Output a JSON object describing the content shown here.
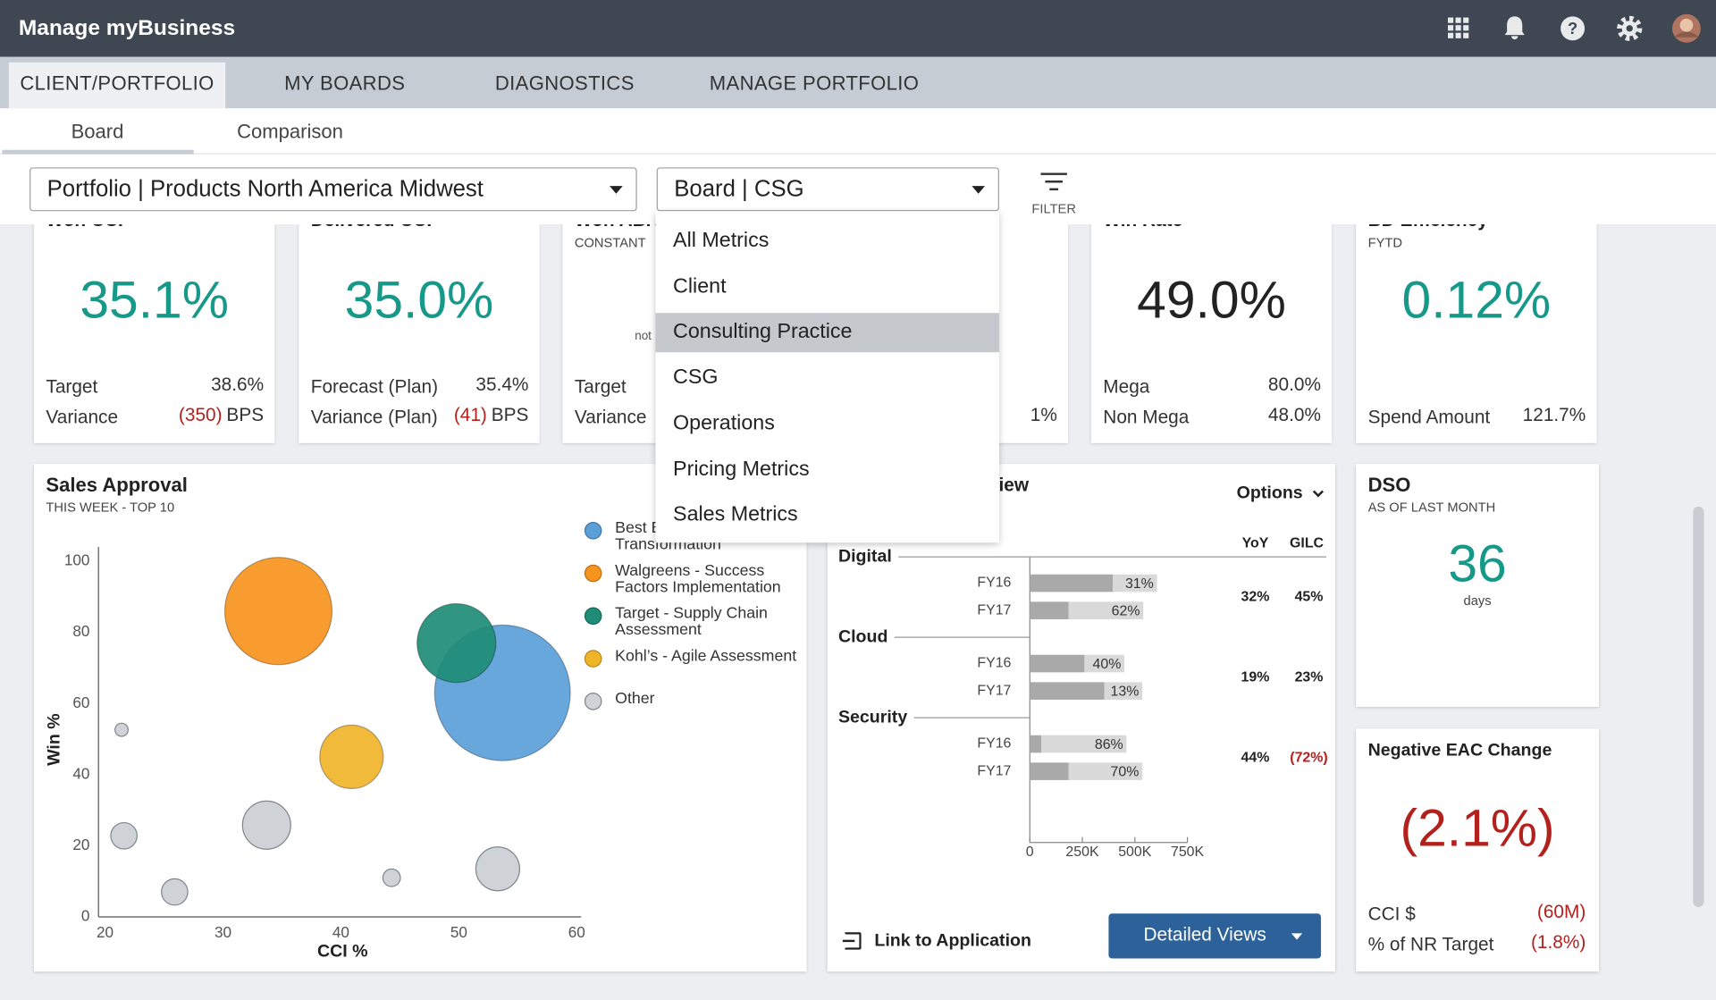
{
  "header": {
    "title": "Manage myBusiness"
  },
  "tabs": {
    "items": [
      "CLIENT/PORTFOLIO",
      "MY BOARDS",
      "DIAGNOSTICS",
      "MANAGE PORTFOLIO"
    ],
    "active": 0
  },
  "subtabs": {
    "items": [
      "Board",
      "Comparison"
    ],
    "active": 0
  },
  "selectors": {
    "portfolio": "Portfolio | Products North America Midwest",
    "board": "Board | CSG",
    "filter": "FILTER"
  },
  "dropdown": {
    "items": [
      "All Metrics",
      "Client",
      "Consulting Practice",
      "CSG",
      "Operations",
      "Pricing Metrics",
      "Sales Metrics"
    ],
    "highlighted": 2
  },
  "kpi_cards": [
    {
      "title": "Won CCI",
      "value": "35.1%",
      "value_color": "#17998a",
      "rows": [
        {
          "label": "Target",
          "value": "38.6%"
        },
        {
          "label": "Variance",
          "value": "(350)",
          "unit": "BPS",
          "negative": true
        }
      ]
    },
    {
      "title": "Delivered CCI",
      "value": "35.0%",
      "value_color": "#17998a",
      "rows": [
        {
          "label": "Forecast (Plan)",
          "value": "35.4%"
        },
        {
          "label": "Variance (Plan)",
          "value": "(41)",
          "unit": "BPS",
          "negative": true
        }
      ]
    },
    {
      "title": "Won ABR",
      "subtitle": "CONSTANT",
      "note": "not",
      "rows": [
        {
          "label": "Target"
        },
        {
          "label": "Variance"
        }
      ]
    },
    {
      "rows": [
        {},
        {
          "value": "1%"
        }
      ]
    },
    {
      "title": "Win Rate",
      "value": "49.0%",
      "value_color": "#222222",
      "rows": [
        {
          "label": "Mega",
          "value": "80.0%"
        },
        {
          "label": "Non Mega",
          "value": "48.0%"
        }
      ]
    },
    {
      "title": "BD Efficiency",
      "subtitle": "FYTD",
      "value": "0.12%",
      "value_color": "#17998a",
      "rows": [
        {},
        {
          "label": "Spend Amount",
          "value": "121.7%"
        }
      ]
    }
  ],
  "sales_approval": {
    "title": "Sales Approval",
    "subtitle": "THIS WEEK - TOP 10",
    "chart_data": {
      "type": "bubble",
      "xlabel": "CCI %",
      "ylabel": "Win %",
      "xlim": [
        20,
        60
      ],
      "xticks": [
        20,
        30,
        40,
        50,
        60
      ],
      "ylim": [
        0,
        100
      ],
      "yticks": [
        0,
        20,
        40,
        60,
        80,
        100
      ],
      "series": [
        {
          "name": "Best Buy - Digital Transformation",
          "color": "#5b9fd9",
          "x": [
            53.7
          ],
          "y": [
            63
          ],
          "size": [
            62
          ]
        },
        {
          "name": "Walgreens - Success Factors Implementation",
          "color": "#f7941d",
          "x": [
            34.7
          ],
          "y": [
            86
          ],
          "size": [
            49
          ]
        },
        {
          "name": "Target - Supply Chain Assessment",
          "color": "#1e8c76",
          "x": [
            49.8
          ],
          "y": [
            77
          ],
          "size": [
            36
          ]
        },
        {
          "name": "Kohl’s - Agile Assessment",
          "color": "#f0b429",
          "x": [
            40.9
          ],
          "y": [
            45
          ],
          "size": [
            29
          ]
        },
        {
          "name": "Other",
          "color": "#cfd3d7",
          "x": [
            21.4,
            21.6,
            25.9,
            33.7,
            44.3,
            53.3
          ],
          "y": [
            52.6,
            22.8,
            7,
            25.8,
            11,
            13.5
          ],
          "size": [
            6,
            12,
            12,
            22,
            8,
            20
          ]
        }
      ]
    }
  },
  "overview": {
    "title": "Overview",
    "options": "Options",
    "columns": [
      "YoY",
      "GILC"
    ],
    "chart_data": {
      "type": "bar",
      "orientation": "horizontal",
      "stacked": true,
      "segment_colors": [
        "#a9a9a9",
        "#d9d9d9"
      ],
      "xlim": [
        0,
        750000
      ],
      "xticks": [
        0,
        {
          "value": 250000,
          "label": "250K"
        },
        {
          "value": 500000,
          "label": "500K"
        },
        {
          "value": 750000,
          "label": "750K"
        }
      ],
      "groups": [
        {
          "name": "Digital",
          "categories": [
            "FY16",
            "FY17"
          ],
          "values": [
            [
              395000,
              210000
            ],
            [
              185000,
              355000
            ]
          ],
          "value_labels": [
            "31%",
            "62%"
          ],
          "yoy": "32%",
          "gilc": "45%"
        },
        {
          "name": "Cloud",
          "categories": [
            "FY16",
            "FY17"
          ],
          "values": [
            [
              260000,
              190000
            ],
            [
              355000,
              180000
            ]
          ],
          "value_labels": [
            "40%",
            "13%"
          ],
          "yoy": "19%",
          "gilc": "23%"
        },
        {
          "name": "Security",
          "categories": [
            "FY16",
            "FY17"
          ],
          "values": [
            [
              55000,
              405000
            ],
            [
              185000,
              350000
            ]
          ],
          "value_labels": [
            "86%",
            "70%"
          ],
          "yoy": "44%",
          "gilc": "(72%)",
          "gilc_negative": true
        }
      ]
    },
    "link": "Link to Application",
    "button": "Detailed Views"
  },
  "dso": {
    "title": "DSO",
    "subtitle": "AS OF LAST MONTH",
    "value": "36",
    "unit": "days"
  },
  "eac": {
    "title": "Negative EAC Change",
    "value": "(2.1%)",
    "rows": [
      {
        "label": "CCI $",
        "value": "(60M)"
      },
      {
        "label": "% of NR Target",
        "value": "(1.8%)"
      }
    ]
  }
}
